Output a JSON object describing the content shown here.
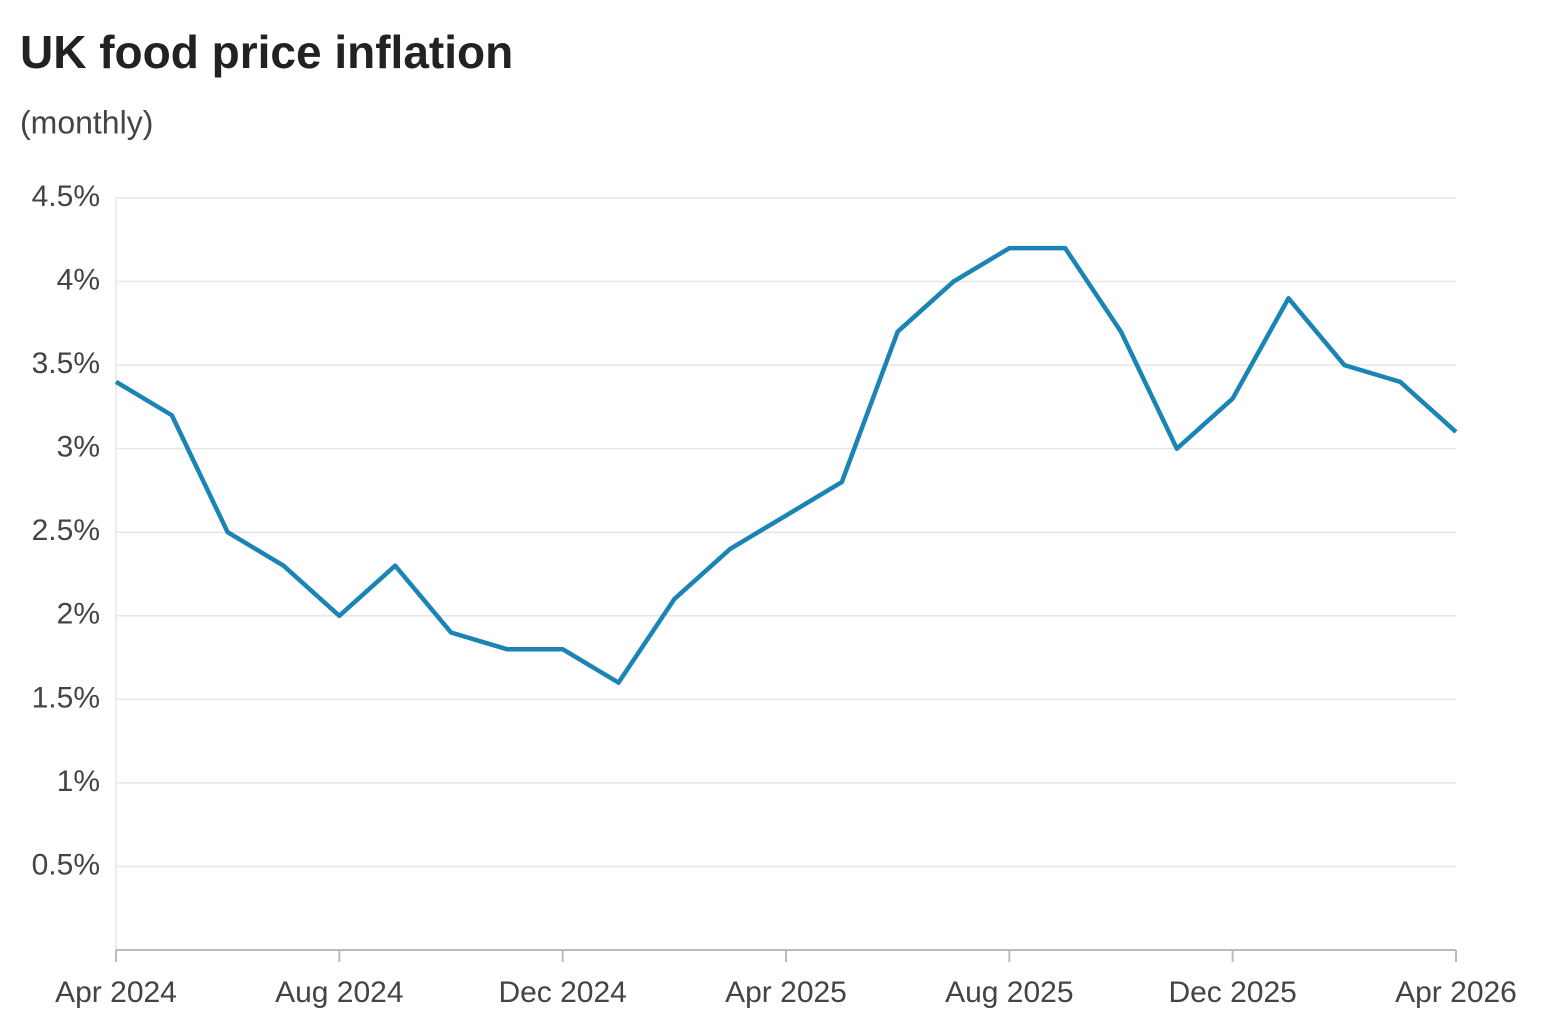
{
  "chart_data": {
    "type": "line",
    "title": "UK food price inflation",
    "subtitle": "(monthly)",
    "categories": [
      "Apr 2024",
      null,
      null,
      null,
      "Aug 2024",
      null,
      null,
      null,
      "Dec 2024",
      null,
      null,
      null,
      "Apr 2025",
      null,
      null,
      null,
      "Aug 2025",
      null,
      null,
      null,
      "Dec 2025",
      null,
      null,
      null,
      "Apr 2026"
    ],
    "values": [
      3.4,
      3.2,
      2.5,
      2.3,
      2.0,
      2.3,
      1.9,
      1.8,
      1.8,
      1.6,
      2.1,
      2.4,
      2.6,
      2.8,
      3.7,
      4.0,
      4.2,
      4.2,
      3.7,
      3.0,
      3.3,
      3.9,
      3.5,
      3.4,
      3.1
    ],
    "color": "#1a85b5",
    "ylim": [
      0,
      4.5
    ],
    "yticks": [
      {
        "value": 0.5,
        "label": "0.5%"
      },
      {
        "value": 1,
        "label": "1%"
      },
      {
        "value": 1.5,
        "label": "1.5%"
      },
      {
        "value": 2,
        "label": "2%"
      },
      {
        "value": 2.5,
        "label": "2.5%"
      },
      {
        "value": 3,
        "label": "3%"
      },
      {
        "value": 3.5,
        "label": "3.5%"
      },
      {
        "value": 4,
        "label": "4%"
      },
      {
        "value": 4.5,
        "label": "4.5%"
      }
    ],
    "grid": true
  }
}
